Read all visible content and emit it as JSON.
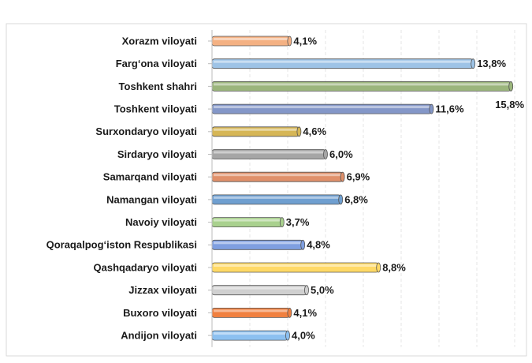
{
  "chart_data": {
    "type": "bar",
    "orientation": "horizontal",
    "categories": [
      "Xorazm viloyati",
      "Farg‘ona viloyati",
      "Toshkent shahri",
      "Toshkent viloyati",
      "Surxondaryo viloyati",
      "Sirdaryo viloyati",
      "Samarqand viloyati",
      "Namangan viloyati",
      "Navoiy viloyati",
      "Qoraqalpog‘iston Respublikasi",
      "Qashqadaryo viloyati",
      "Jizzax viloyati",
      "Buxoro viloyati",
      "Andijon viloyati"
    ],
    "values": [
      4.1,
      13.8,
      15.8,
      11.6,
      4.6,
      6.0,
      6.9,
      6.8,
      3.7,
      4.8,
      8.8,
      5.0,
      4.1,
      4.0
    ],
    "value_labels": [
      "4,1%",
      "13,8%",
      "15,8%",
      "11,6%",
      "4,6%",
      "6,0%",
      "6,9%",
      "6,8%",
      "3,7%",
      "4,8%",
      "8,8%",
      "5,0%",
      "4,1%",
      "4,0%"
    ],
    "colors": [
      "#f4b183",
      "#9dc3e6",
      "#9bb57c",
      "#8497c8",
      "#d6b656",
      "#a6a6a6",
      "#e0906a",
      "#6f9fd0",
      "#a9d18e",
      "#7f9fe0",
      "#ffd966",
      "#d0d0d0",
      "#f08040",
      "#8cc0f0"
    ],
    "xlim": [
      0,
      16
    ],
    "xticks": [
      0,
      2,
      4,
      6,
      8,
      10,
      12,
      14,
      16
    ],
    "grid": true
  }
}
